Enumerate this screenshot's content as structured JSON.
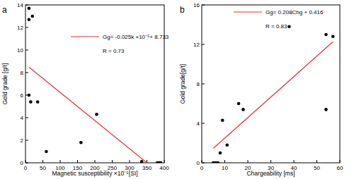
{
  "chart_data": [
    {
      "type": "scatter",
      "title": "a",
      "x_label": "Magnetic susceptibility ×10⁻⁵[SI]",
      "y_label": "Gold grade [g/t]",
      "annotations": [
        "Gg= -0.025k ×10⁻⁵+ 8.733",
        "R = 0.73"
      ],
      "xlim": [
        0,
        400
      ],
      "xticks": [
        0,
        50,
        100,
        150,
        200,
        250,
        300,
        350,
        400
      ],
      "ylim": [
        0,
        14
      ],
      "yticks": [
        0,
        2,
        4,
        6,
        8,
        10,
        12,
        14
      ],
      "grid": false,
      "series": [
        {
          "type": "scatter",
          "color": "#000000",
          "marker": "circle",
          "x": [
            10,
            10,
            20,
            10,
            15,
            35,
            60,
            205,
            160,
            335,
            380,
            385,
            390
          ],
          "values": [
            13.7,
            12.7,
            13.0,
            6.0,
            5.4,
            5.4,
            1.0,
            4.3,
            1.8,
            0.1,
            0.0,
            0.0,
            0.0
          ]
        },
        {
          "type": "line",
          "color": "#e03030",
          "line_style": "solid",
          "x": [
            10,
            350
          ],
          "values": [
            8.48,
            0.0
          ]
        }
      ]
    },
    {
      "type": "scatter",
      "title": "b",
      "x_label": "Chargeability [ms]",
      "y_label": "Gold grade[g/t]",
      "annotations": [
        "Gg= 0.208Chg + 0.416",
        "R = 0.83"
      ],
      "xlim": [
        0,
        60
      ],
      "xticks": [
        0,
        10,
        20,
        30,
        40,
        50,
        60
      ],
      "ylim": [
        0,
        16
      ],
      "yticks": [
        0,
        4,
        8,
        12,
        16
      ],
      "grid": false,
      "series": [
        {
          "type": "scatter",
          "color": "#000000",
          "marker": "circle",
          "x": [
            5,
            6,
            7,
            8,
            9,
            11,
            16,
            18,
            38,
            54,
            54,
            57
          ],
          "values": [
            0.0,
            0.0,
            0.0,
            1.0,
            4.3,
            1.8,
            6.0,
            5.4,
            13.8,
            13.0,
            5.4,
            12.8
          ]
        },
        {
          "type": "line",
          "color": "#e03030",
          "line_style": "solid",
          "x": [
            5,
            57
          ],
          "values": [
            1.46,
            12.27
          ]
        }
      ]
    }
  ]
}
